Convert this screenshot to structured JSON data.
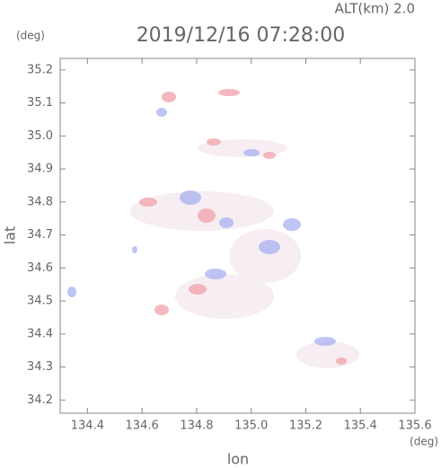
{
  "chart_data": {
    "type": "map",
    "title": "2019/12/16 07:28:00",
    "altitude_label": "ALT(km) 2.0",
    "x_label": "lon",
    "y_label": "lat",
    "x_unit": "(deg)",
    "y_unit": "(deg)",
    "xlim": [
      134.3,
      135.6
    ],
    "ylim": [
      34.16,
      35.235
    ],
    "xticks": [
      134.4,
      134.6,
      134.8,
      {
        "value": 135.0,
        "label": "135.0"
      },
      135.2,
      135.4,
      135.6
    ],
    "yticks": [
      34.2,
      34.3,
      34.4,
      34.5,
      34.6,
      34.7,
      34.8,
      34.9,
      {
        "value": 35.0,
        "label": "35.0"
      },
      35.1,
      35.2
    ],
    "grid": false
  }
}
